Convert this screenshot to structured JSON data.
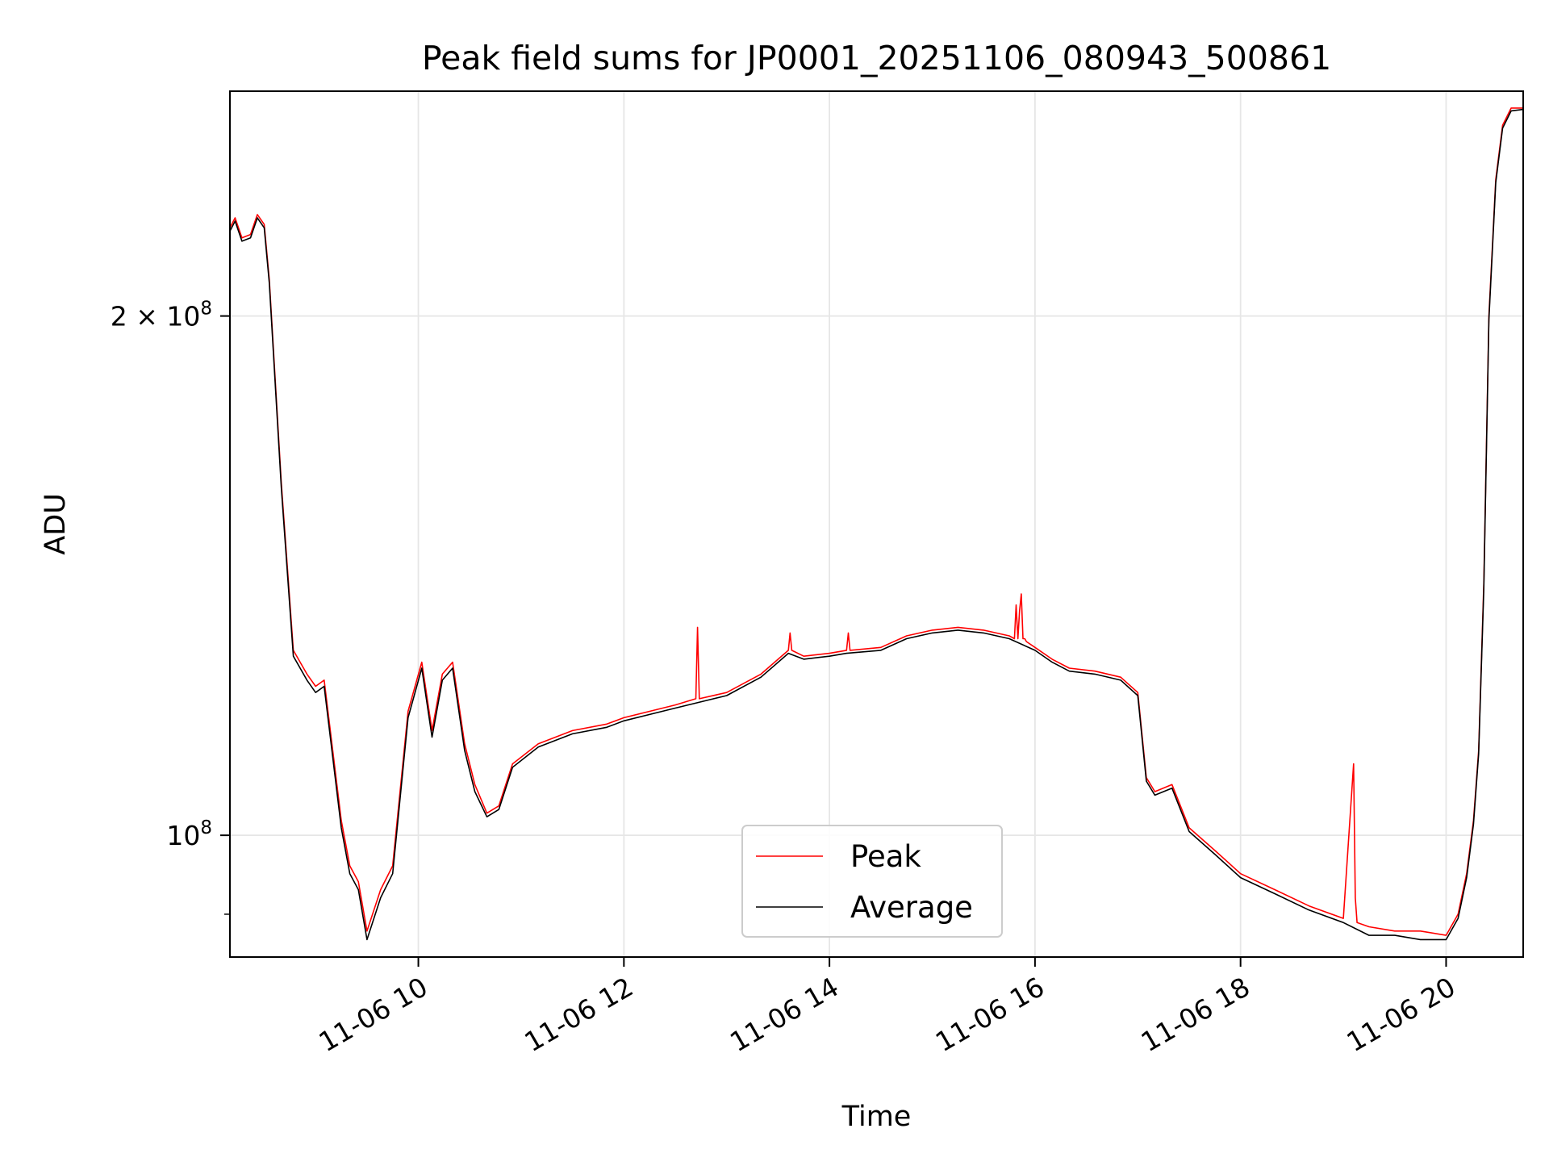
{
  "chart_data": {
    "type": "line",
    "title": "Peak field sums for JP0001_20251106_080943_500861",
    "xlabel": "Time",
    "ylabel": "ADU",
    "y_scale": "log",
    "grid": true,
    "legend": {
      "placement": "lower center",
      "entries": [
        "Peak",
        "Average"
      ]
    },
    "xlim": [
      "2025-11-06 08:10",
      "2025-11-06 20:45"
    ],
    "ylim": [
      85000000,
      270000000
    ],
    "x_ticks": [
      {
        "value": "2025-11-06 10:00",
        "label": "11-06 10"
      },
      {
        "value": "2025-11-06 12:00",
        "label": "11-06 12"
      },
      {
        "value": "2025-11-06 14:00",
        "label": "11-06 14"
      },
      {
        "value": "2025-11-06 16:00",
        "label": "11-06 16"
      },
      {
        "value": "2025-11-06 18:00",
        "label": "11-06 18"
      },
      {
        "value": "2025-11-06 20:00",
        "label": "11-06 20"
      }
    ],
    "y_ticks": [
      {
        "value": 100000000,
        "base": "10",
        "exp": "8",
        "mult": ""
      },
      {
        "value": 200000000,
        "base": "10",
        "exp": "8",
        "mult": "2 × "
      }
    ],
    "series": [
      {
        "name": "Peak",
        "color": "#ff0000",
        "x": [
          "2025-11-06 08:10",
          "2025-11-06 08:13",
          "2025-11-06 08:17",
          "2025-11-06 08:22",
          "2025-11-06 08:26",
          "2025-11-06 08:30",
          "2025-11-06 08:33",
          "2025-11-06 08:40",
          "2025-11-06 08:47",
          "2025-11-06 08:55",
          "2025-11-06 09:00",
          "2025-11-06 09:05",
          "2025-11-06 09:10",
          "2025-11-06 09:15",
          "2025-11-06 09:20",
          "2025-11-06 09:25",
          "2025-11-06 09:30",
          "2025-11-06 09:38",
          "2025-11-06 09:45",
          "2025-11-06 09:54",
          "2025-11-06 10:02",
          "2025-11-06 10:08",
          "2025-11-06 10:14",
          "2025-11-06 10:20",
          "2025-11-06 10:27",
          "2025-11-06 10:33",
          "2025-11-06 10:40",
          "2025-11-06 10:47",
          "2025-11-06 10:55",
          "2025-11-06 11:10",
          "2025-11-06 11:30",
          "2025-11-06 11:50",
          "2025-11-06 12:00",
          "2025-11-06 12:30",
          "2025-11-06 12:42",
          "2025-11-06 12:43",
          "2025-11-06 12:44",
          "2025-11-06 13:00",
          "2025-11-06 13:20",
          "2025-11-06 13:36",
          "2025-11-06 13:37",
          "2025-11-06 13:38",
          "2025-11-06 13:45",
          "2025-11-06 14:00",
          "2025-11-06 14:10",
          "2025-11-06 14:11",
          "2025-11-06 14:12",
          "2025-11-06 14:30",
          "2025-11-06 14:45",
          "2025-11-06 15:00",
          "2025-11-06 15:15",
          "2025-11-06 15:30",
          "2025-11-06 15:45",
          "2025-11-06 15:48",
          "2025-11-06 15:49",
          "2025-11-06 15:50",
          "2025-11-06 15:51",
          "2025-11-06 15:52",
          "2025-11-06 15:53",
          "2025-11-06 15:54",
          "2025-11-06 15:55",
          "2025-11-06 16:00",
          "2025-11-06 16:10",
          "2025-11-06 16:20",
          "2025-11-06 16:35",
          "2025-11-06 16:50",
          "2025-11-06 17:00",
          "2025-11-06 17:05",
          "2025-11-06 17:10",
          "2025-11-06 17:20",
          "2025-11-06 17:30",
          "2025-11-06 17:45",
          "2025-11-06 18:00",
          "2025-11-06 18:20",
          "2025-11-06 18:40",
          "2025-11-06 19:00",
          "2025-11-06 19:06",
          "2025-11-06 19:07",
          "2025-11-06 19:08",
          "2025-11-06 19:15",
          "2025-11-06 19:30",
          "2025-11-06 19:45",
          "2025-11-06 20:00",
          "2025-11-06 20:07",
          "2025-11-06 20:12",
          "2025-11-06 20:16",
          "2025-11-06 20:19",
          "2025-11-06 20:22",
          "2025-11-06 20:25",
          "2025-11-06 20:29",
          "2025-11-06 20:33",
          "2025-11-06 20:38",
          "2025-11-06 20:45"
        ],
        "values": [
          225000000,
          228000000,
          222000000,
          223000000,
          229000000,
          226000000,
          210000000,
          160000000,
          128000000,
          124000000,
          122000000,
          123000000,
          112000000,
          102000000,
          96000000,
          94000000,
          88000000,
          93000000,
          96000000,
          118000000,
          126000000,
          115000000,
          124000000,
          126000000,
          113000000,
          107000000,
          103000000,
          104000000,
          110000000,
          113000000,
          115000000,
          116000000,
          117000000,
          119000000,
          120000000,
          132000000,
          120000000,
          121000000,
          124000000,
          128000000,
          131000000,
          128000000,
          127000000,
          127500000,
          128000000,
          131000000,
          128000000,
          128500000,
          130500000,
          131500000,
          132000000,
          131500000,
          130500000,
          130000000,
          136000000,
          130000000,
          135000000,
          138000000,
          130000000,
          130000000,
          129500000,
          128500000,
          126500000,
          125000000,
          124500000,
          123500000,
          121000000,
          108000000,
          106000000,
          107000000,
          101000000,
          98000000,
          95000000,
          93000000,
          91000000,
          89500000,
          110000000,
          92000000,
          89000000,
          88500000,
          88000000,
          88000000,
          87500000,
          90000000,
          95000000,
          102000000,
          112000000,
          140000000,
          200000000,
          240000000,
          258000000,
          264000000,
          264000000
        ]
      },
      {
        "name": "Average",
        "color": "#000000",
        "x": [
          "2025-11-06 08:10",
          "2025-11-06 08:13",
          "2025-11-06 08:17",
          "2025-11-06 08:22",
          "2025-11-06 08:26",
          "2025-11-06 08:30",
          "2025-11-06 08:33",
          "2025-11-06 08:40",
          "2025-11-06 08:47",
          "2025-11-06 08:55",
          "2025-11-06 09:00",
          "2025-11-06 09:05",
          "2025-11-06 09:10",
          "2025-11-06 09:15",
          "2025-11-06 09:20",
          "2025-11-06 09:25",
          "2025-11-06 09:30",
          "2025-11-06 09:38",
          "2025-11-06 09:45",
          "2025-11-06 09:54",
          "2025-11-06 10:02",
          "2025-11-06 10:08",
          "2025-11-06 10:14",
          "2025-11-06 10:20",
          "2025-11-06 10:27",
          "2025-11-06 10:33",
          "2025-11-06 10:40",
          "2025-11-06 10:47",
          "2025-11-06 10:55",
          "2025-11-06 11:10",
          "2025-11-06 11:30",
          "2025-11-06 11:50",
          "2025-11-06 12:00",
          "2025-11-06 12:30",
          "2025-11-06 13:00",
          "2025-11-06 13:20",
          "2025-11-06 13:36",
          "2025-11-06 13:45",
          "2025-11-06 14:00",
          "2025-11-06 14:10",
          "2025-11-06 14:30",
          "2025-11-06 14:45",
          "2025-11-06 15:00",
          "2025-11-06 15:15",
          "2025-11-06 15:30",
          "2025-11-06 15:45",
          "2025-11-06 16:00",
          "2025-11-06 16:10",
          "2025-11-06 16:20",
          "2025-11-06 16:35",
          "2025-11-06 16:50",
          "2025-11-06 17:00",
          "2025-11-06 17:05",
          "2025-11-06 17:10",
          "2025-11-06 17:20",
          "2025-11-06 17:30",
          "2025-11-06 17:45",
          "2025-11-06 18:00",
          "2025-11-06 18:20",
          "2025-11-06 18:40",
          "2025-11-06 19:00",
          "2025-11-06 19:15",
          "2025-11-06 19:30",
          "2025-11-06 19:45",
          "2025-11-06 20:00",
          "2025-11-06 20:07",
          "2025-11-06 20:12",
          "2025-11-06 20:16",
          "2025-11-06 20:19",
          "2025-11-06 20:22",
          "2025-11-06 20:25",
          "2025-11-06 20:29",
          "2025-11-06 20:33",
          "2025-11-06 20:38",
          "2025-11-06 20:45"
        ],
        "values": [
          224000000,
          227000000,
          221000000,
          222000000,
          228000000,
          225000000,
          209000000,
          159000000,
          127000000,
          123000000,
          121000000,
          122000000,
          111000000,
          101000000,
          95000000,
          93000000,
          87000000,
          92000000,
          95000000,
          117000000,
          125000000,
          114000000,
          123000000,
          125000000,
          112000000,
          106000000,
          102500000,
          103500000,
          109500000,
          112500000,
          114500000,
          115500000,
          116500000,
          118500000,
          120500000,
          123500000,
          127500000,
          126500000,
          127000000,
          127500000,
          128000000,
          130000000,
          131000000,
          131500000,
          131000000,
          130000000,
          128000000,
          126000000,
          124500000,
          124000000,
          123000000,
          120500000,
          107500000,
          105500000,
          106500000,
          100500000,
          97500000,
          94500000,
          92500000,
          90500000,
          89000000,
          87500000,
          87500000,
          87000000,
          87000000,
          89500000,
          94500000,
          101500000,
          111500000,
          139000000,
          199000000,
          239000000,
          257000000,
          263000000,
          263500000
        ]
      }
    ]
  }
}
